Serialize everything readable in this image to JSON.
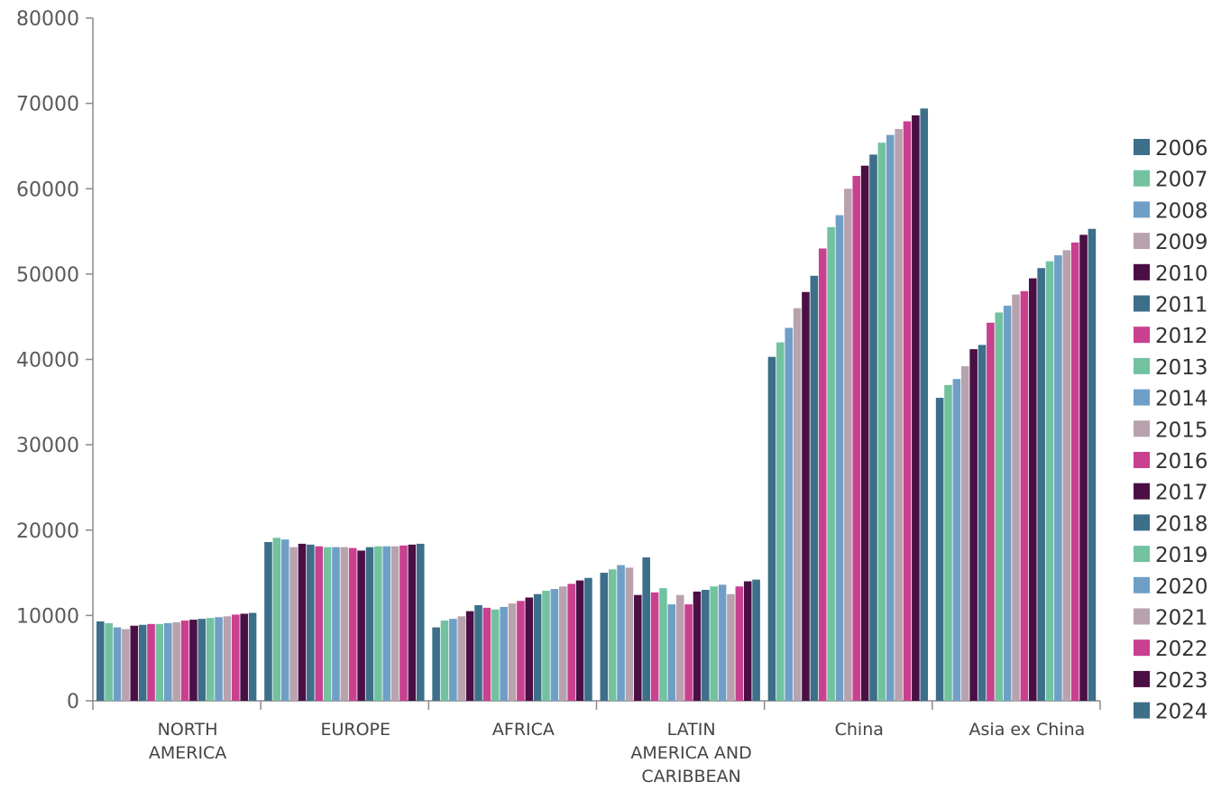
{
  "chart_data": {
    "type": "bar",
    "title": "",
    "xlabel": "",
    "ylabel": "",
    "ylim": [
      0,
      80000
    ],
    "yticks": [
      0,
      10000,
      20000,
      30000,
      40000,
      50000,
      60000,
      70000,
      80000
    ],
    "grid": false,
    "legend_position": "right",
    "categories": [
      [
        "NORTH",
        "AMERICA"
      ],
      [
        "EUROPE"
      ],
      [
        "AFRICA"
      ],
      [
        "LATIN",
        "AMERICA AND",
        "CARIBBEAN"
      ],
      [
        "China"
      ],
      [
        "Asia ex China"
      ]
    ],
    "series": [
      {
        "name": "2006",
        "color": "#3d6e8a",
        "values": [
          9300,
          18600,
          8600,
          15000,
          40300,
          35500
        ]
      },
      {
        "name": "2007",
        "color": "#72c2a0",
        "values": [
          9100,
          19100,
          9400,
          15400,
          42000,
          37000
        ]
      },
      {
        "name": "2008",
        "color": "#6f9fc6",
        "values": [
          8600,
          18900,
          9600,
          15900,
          43700,
          37700
        ]
      },
      {
        "name": "2009",
        "color": "#b8a2ae",
        "values": [
          8400,
          18000,
          9900,
          15600,
          46000,
          39200
        ]
      },
      {
        "name": "2010",
        "color": "#4a0f45",
        "values": [
          8800,
          18400,
          10500,
          12400,
          47900,
          41200
        ]
      },
      {
        "name": "2011",
        "color": "#3d6e8a",
        "values": [
          8900,
          18300,
          11200,
          16800,
          49800,
          41700
        ]
      },
      {
        "name": "2012",
        "color": "#c8408f",
        "values": [
          9000,
          18100,
          10900,
          12700,
          53000,
          44300
        ]
      },
      {
        "name": "2013",
        "color": "#72c2a0",
        "values": [
          9000,
          18000,
          10700,
          13200,
          55500,
          45500
        ]
      },
      {
        "name": "2014",
        "color": "#6f9fc6",
        "values": [
          9100,
          18000,
          11000,
          11300,
          56900,
          46300
        ]
      },
      {
        "name": "2015",
        "color": "#b8a2ae",
        "values": [
          9200,
          18000,
          11400,
          12400,
          60000,
          47600
        ]
      },
      {
        "name": "2016",
        "color": "#c8408f",
        "values": [
          9400,
          17900,
          11700,
          11300,
          61500,
          48000
        ]
      },
      {
        "name": "2017",
        "color": "#4a0f45",
        "values": [
          9500,
          17600,
          12100,
          12800,
          62700,
          49500
        ]
      },
      {
        "name": "2018",
        "color": "#3d6e8a",
        "values": [
          9600,
          18000,
          12500,
          13000,
          64000,
          50700
        ]
      },
      {
        "name": "2019",
        "color": "#72c2a0",
        "values": [
          9700,
          18100,
          12900,
          13400,
          65400,
          51500
        ]
      },
      {
        "name": "2020",
        "color": "#6f9fc6",
        "values": [
          9800,
          18100,
          13100,
          13600,
          66300,
          52200
        ]
      },
      {
        "name": "2021",
        "color": "#b8a2ae",
        "values": [
          9900,
          18100,
          13400,
          12500,
          67000,
          52800
        ]
      },
      {
        "name": "2022",
        "color": "#c8408f",
        "values": [
          10100,
          18200,
          13700,
          13400,
          67900,
          53700
        ]
      },
      {
        "name": "2023",
        "color": "#4a0f45",
        "values": [
          10200,
          18300,
          14100,
          14000,
          68600,
          54600
        ]
      },
      {
        "name": "2024",
        "color": "#3d6e8a",
        "values": [
          10300,
          18400,
          14400,
          14200,
          69400,
          55300
        ]
      }
    ]
  }
}
